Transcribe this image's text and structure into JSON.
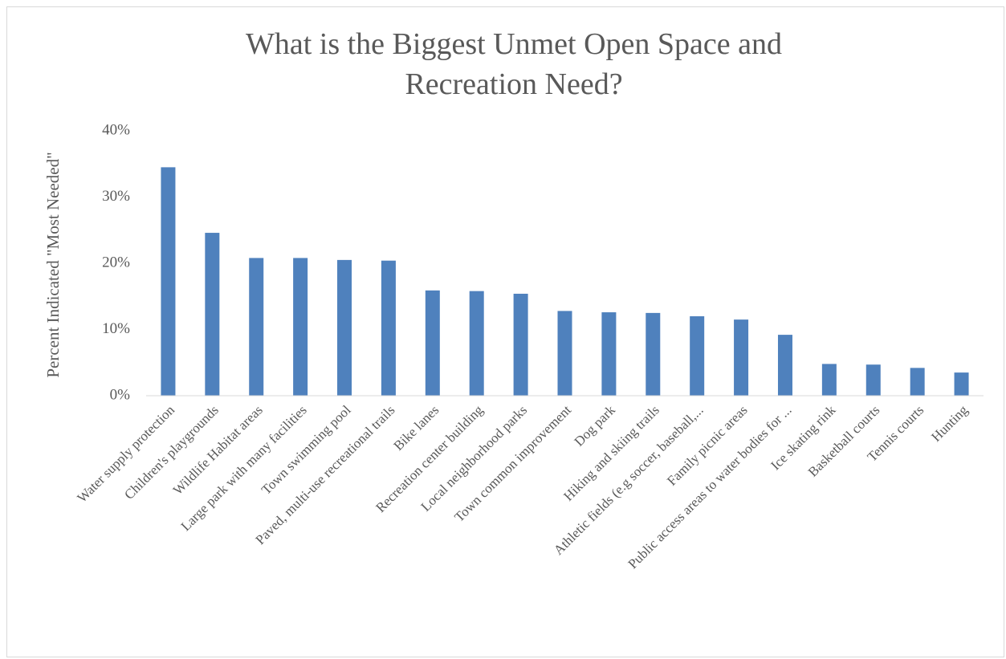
{
  "chart_data": {
    "type": "bar",
    "title": "What is the Biggest Unmet Open Space and Recreation Need?",
    "y_label": "Percent Indicated \"Most Needed\"",
    "categories": [
      "Water supply protection",
      "Children's playgrounds",
      "Wildlife Habitat areas",
      "Large park with many facilities",
      "Town swimming pool",
      "Paved, multi-use recreational trails",
      "Bike lanes",
      "Recreation center building",
      "Local neighborhood parks",
      "Town common improvement",
      "Dog park",
      "Hiking and skiing trails",
      "Athletic fields (e.g soccer, baseball,...",
      "Family picnic areas",
      "Public access areas to water bodies for ...",
      "Ice skating rink",
      "Basketball courts",
      "Tennis courts",
      "Hunting"
    ],
    "values": [
      34.5,
      24.6,
      20.8,
      20.8,
      20.5,
      20.4,
      15.9,
      15.8,
      15.4,
      12.8,
      12.6,
      12.5,
      12.0,
      11.5,
      9.2,
      4.8,
      4.7,
      4.2,
      3.5
    ],
    "color": "#4f81bd",
    "ylim": [
      0,
      40
    ],
    "yticks": [
      {
        "value": 0,
        "label": "0%"
      },
      {
        "value": 10,
        "label": "10%"
      },
      {
        "value": 20,
        "label": "20%"
      },
      {
        "value": 30,
        "label": "30%"
      },
      {
        "value": 40,
        "label": "40%"
      }
    ],
    "grid": false
  }
}
